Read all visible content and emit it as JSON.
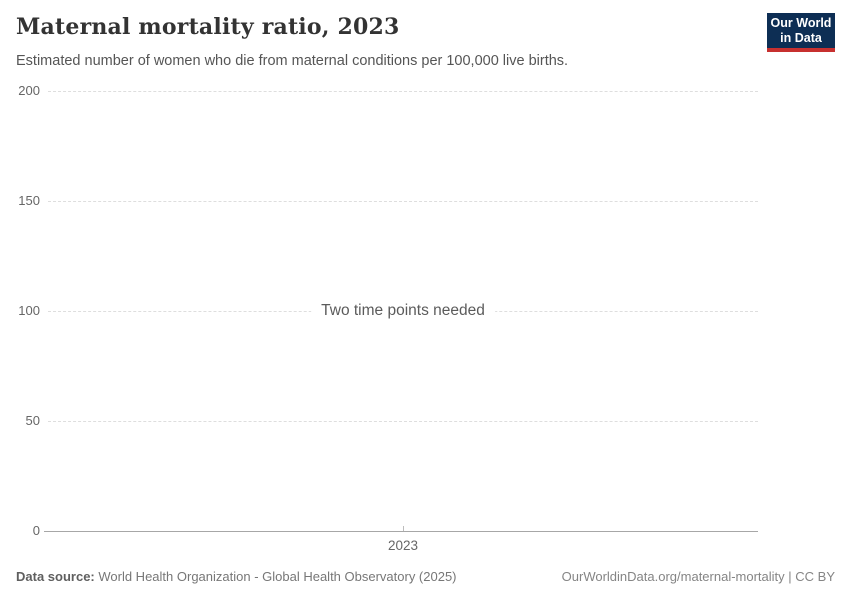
{
  "header": {
    "title": "Maternal mortality ratio, 2023",
    "subtitle": "Estimated number of women who die from maternal conditions per 100,000 live births.",
    "logo": {
      "line1": "Our World",
      "line2": "in Data"
    }
  },
  "chart_data": {
    "type": "line",
    "title": "Maternal mortality ratio, 2023",
    "subtitle": "Estimated number of women who die from maternal conditions per 100,000 live births.",
    "xlabel": "",
    "ylabel": "",
    "ylim": [
      0,
      200
    ],
    "yticks": [
      0,
      50,
      100,
      150,
      200
    ],
    "xticks": [
      "2023"
    ],
    "series": [],
    "empty_message": "Two time points needed",
    "grid": true,
    "grid_style": "dashed",
    "legend_position": "none"
  },
  "footer": {
    "source_label": "Data source:",
    "source_text": " World Health Organization - Global Health Observatory (2025)",
    "link_text": "OurWorldinData.org/maternal-mortality | CC BY"
  },
  "colors": {
    "logo_background": "#0d2e54",
    "logo_accent_red": "#c7302f",
    "gridline": "#dedede",
    "axis_line": "#a7a7a7",
    "tick_label": "#666666",
    "title_text": "#333333",
    "subtitle_text": "#555555",
    "message_text": "#5b5b5b"
  }
}
